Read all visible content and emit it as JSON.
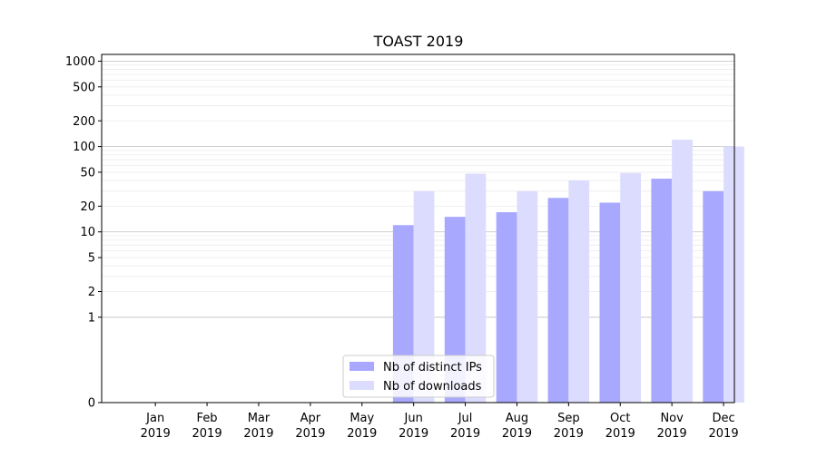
{
  "chart_data": {
    "type": "bar",
    "title": "TOAST 2019",
    "xlabel": "",
    "ylabel": "",
    "yscale": "symlog",
    "ylim": [
      0,
      1200
    ],
    "y_ticks": [
      {
        "value": 0,
        "label": "0"
      },
      {
        "value": 1,
        "label": "1"
      },
      {
        "value": 2,
        "label": "2"
      },
      {
        "value": 5,
        "label": "5"
      },
      {
        "value": 10,
        "label": "10"
      },
      {
        "value": 20,
        "label": "20"
      },
      {
        "value": 50,
        "label": "50"
      },
      {
        "value": 100,
        "label": "100"
      },
      {
        "value": 200,
        "label": "200"
      },
      {
        "value": 500,
        "label": "500"
      },
      {
        "value": 1000,
        "label": "1000"
      }
    ],
    "categories": [
      [
        "Jan",
        "2019"
      ],
      [
        "Feb",
        "2019"
      ],
      [
        "Mar",
        "2019"
      ],
      [
        "Apr",
        "2019"
      ],
      [
        "May",
        "2019"
      ],
      [
        "Jun",
        "2019"
      ],
      [
        "Jul",
        "2019"
      ],
      [
        "Aug",
        "2019"
      ],
      [
        "Sep",
        "2019"
      ],
      [
        "Oct",
        "2019"
      ],
      [
        "Nov",
        "2019"
      ],
      [
        "Dec",
        "2019"
      ]
    ],
    "series": [
      {
        "name": "Nb of distinct IPs",
        "color": "#a8a8ff",
        "values": [
          0,
          0,
          0,
          0,
          0,
          12,
          15,
          17,
          25,
          22,
          42,
          30
        ]
      },
      {
        "name": "Nb of downloads",
        "color": "#dcdcff",
        "values": [
          0,
          0,
          0,
          0,
          0,
          30,
          48,
          30,
          40,
          49,
          120,
          100
        ]
      }
    ],
    "grid": true,
    "legend_position": "bottom-center"
  }
}
